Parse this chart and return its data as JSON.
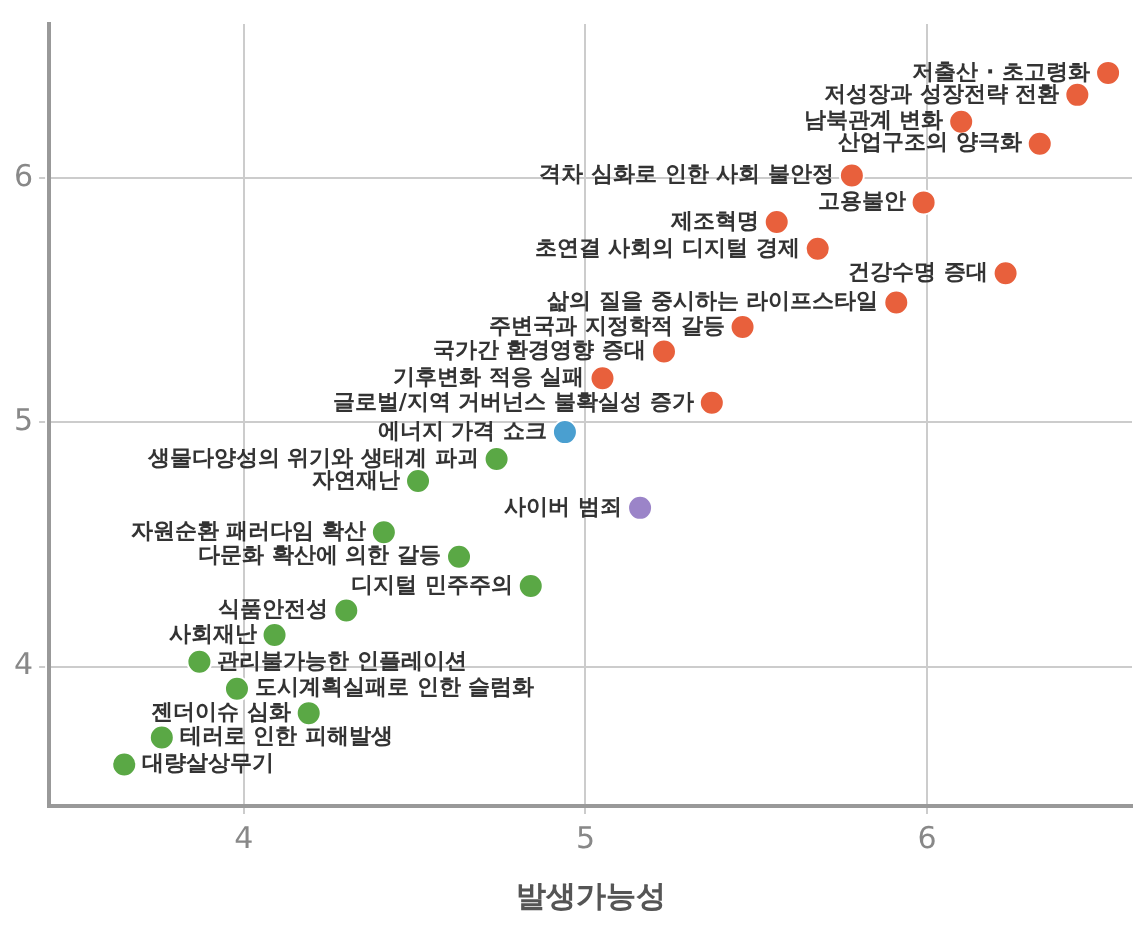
{
  "chart_data": {
    "type": "scatter",
    "xlabel": "발생가능성",
    "xlim": [
      3.43,
      6.6
    ],
    "ylim": [
      3.43,
      6.63
    ],
    "xticks": [
      4,
      5,
      6
    ],
    "yticks": [
      4,
      5,
      6
    ],
    "grid": true,
    "legend": false,
    "marker": "circle",
    "series": [
      {
        "color": "#e8603c",
        "x": [
          6.53,
          6.44,
          6.1,
          6.33,
          5.78,
          5.99,
          5.56,
          5.68,
          6.23,
          5.91,
          5.46,
          5.23,
          5.05,
          5.37
        ],
        "values": [
          6.43,
          6.34,
          6.23,
          6.14,
          6.01,
          5.9,
          5.82,
          5.71,
          5.61,
          5.49,
          5.39,
          5.29,
          5.18,
          5.08
        ]
      },
      {
        "color": "#4a9fd0",
        "x": [
          4.94
        ],
        "values": [
          4.96
        ]
      },
      {
        "color": "#9b84c8",
        "x": [
          5.16
        ],
        "values": [
          4.65
        ]
      },
      {
        "color": "#5aa845",
        "x": [
          4.74,
          4.51,
          4.41,
          4.63,
          4.84,
          4.3,
          4.09,
          3.87,
          3.98,
          4.19,
          3.76,
          3.65
        ],
        "values": [
          4.85,
          4.76,
          4.55,
          4.45,
          4.33,
          4.23,
          4.13,
          4.02,
          3.91,
          3.81,
          3.71,
          3.6
        ]
      }
    ],
    "annotations": [
      {
        "text": "저출산 · 초고령화",
        "x": 6.53,
        "y": 6.43
      },
      {
        "text": "저성장과 성장전략 전환",
        "x": 6.44,
        "y": 6.34
      },
      {
        "text": "남북관계 변화",
        "x": 6.1,
        "y": 6.23
      },
      {
        "text": "산업구조의 양극화",
        "x": 6.33,
        "y": 6.14
      },
      {
        "text": "격차 심화로 인한 사회 불안정",
        "x": 5.78,
        "y": 6.01
      },
      {
        "text": "고용불안",
        "x": 5.99,
        "y": 5.9
      },
      {
        "text": "제조혁명",
        "x": 5.56,
        "y": 5.82
      },
      {
        "text": "초연결 사회의 디지털 경제",
        "x": 5.68,
        "y": 5.71
      },
      {
        "text": "건강수명 증대",
        "x": 6.23,
        "y": 5.61
      },
      {
        "text": "삶의 질을 중시하는 라이프스타일",
        "x": 5.91,
        "y": 5.49
      },
      {
        "text": "주변국과 지정학적 갈등",
        "x": 5.46,
        "y": 5.39
      },
      {
        "text": "국가간 환경영향 증대",
        "x": 5.23,
        "y": 5.29
      },
      {
        "text": "기후변화 적응 실패",
        "x": 5.05,
        "y": 5.18
      },
      {
        "text": "글로벌/지역 거버넌스 불확실성 증가",
        "x": 5.37,
        "y": 5.08
      },
      {
        "text": "에너지 가격 쇼크",
        "x": 4.94,
        "y": 4.96
      },
      {
        "text": "사이버 범죄",
        "x": 5.16,
        "y": 4.65
      },
      {
        "text": "생물다양성의 위기와 생태계 파괴",
        "x": 4.74,
        "y": 4.85
      },
      {
        "text": "자연재난",
        "x": 4.51,
        "y": 4.76
      },
      {
        "text": "자원순환 패러다임 확산",
        "x": 4.41,
        "y": 4.55
      },
      {
        "text": "다문화 확산에 의한 갈등",
        "x": 4.63,
        "y": 4.45
      },
      {
        "text": "디지털 민주주의",
        "x": 4.84,
        "y": 4.33
      },
      {
        "text": "식품안전성",
        "x": 4.3,
        "y": 4.23
      },
      {
        "text": "사회재난",
        "x": 4.09,
        "y": 4.13
      },
      {
        "text": "관리불가능한 인플레이션",
        "x": 3.87,
        "y": 4.02
      },
      {
        "text": "도시계획실패로 인한 슬럼화",
        "x": 3.98,
        "y": 3.91
      },
      {
        "text": "젠더이슈 심화",
        "x": 4.19,
        "y": 3.81
      },
      {
        "text": "테러로 인한 피해발생",
        "x": 3.76,
        "y": 3.71
      },
      {
        "text": "대량살상무기",
        "x": 3.65,
        "y": 3.6
      }
    ]
  }
}
